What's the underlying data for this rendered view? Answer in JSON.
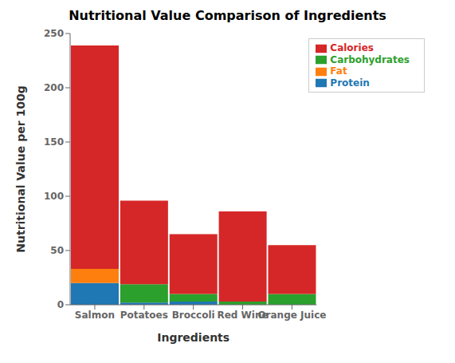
{
  "chart_data": {
    "type": "bar",
    "title": "Nutritional Value Comparison of Ingredients",
    "xlabel": "Ingredients",
    "ylabel": "Nutritional Value per 100g",
    "categories": [
      "Salmon",
      "Potatoes",
      "Broccoli",
      "Red Wine",
      "Orange Juice"
    ],
    "series": [
      {
        "name": "Protein",
        "color": "#1f77b4",
        "values": [
          20,
          2,
          3,
          0,
          0
        ]
      },
      {
        "name": "Fat",
        "color": "#ff7f0e",
        "values": [
          13,
          0,
          0,
          0,
          0
        ]
      },
      {
        "name": "Carbohydrates",
        "color": "#2ca02c",
        "values": [
          0,
          17,
          7,
          3,
          10
        ]
      },
      {
        "name": "Calories",
        "color": "#d62728",
        "values": [
          206,
          77,
          55,
          83,
          45
        ]
      }
    ],
    "stacked": true,
    "ylim": [
      0,
      250
    ],
    "yticks": [
      0,
      50,
      100,
      150,
      200,
      250
    ],
    "grid": false,
    "legend": "upper right"
  }
}
